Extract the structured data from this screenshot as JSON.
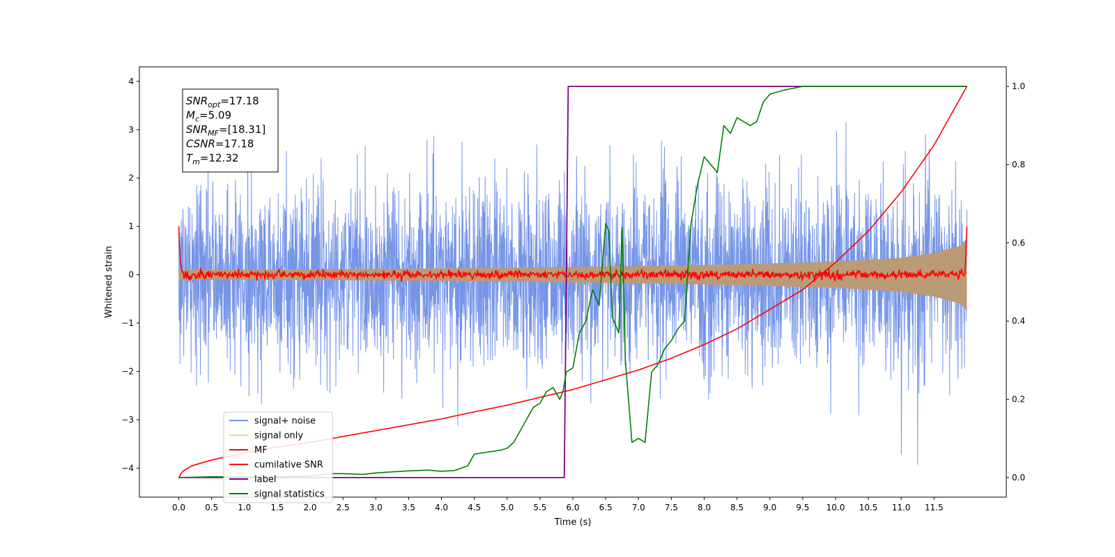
{
  "chart_data": {
    "type": "line",
    "title": "",
    "xlabel": "Time (s)",
    "ylabel": "Whitened strain",
    "ylabel_right": "",
    "xlim": [
      -0.6,
      12.6
    ],
    "ylim": [
      -4.6,
      4.3
    ],
    "ylim_right": [
      -0.05,
      1.05
    ],
    "x_ticks": [
      "0.0",
      "0.5",
      "1.0",
      "1.5",
      "2.0",
      "2.5",
      "3.0",
      "3.5",
      "4.0",
      "4.5",
      "5.0",
      "5.5",
      "6.0",
      "6.5",
      "7.0",
      "7.5",
      "8.0",
      "8.5",
      "9.0",
      "9.5",
      "10.0",
      "10.5",
      "11.0",
      "11.5"
    ],
    "y_ticks": [
      "4",
      "3",
      "2",
      "1",
      "0",
      "−1",
      "−2",
      "−3",
      "−4"
    ],
    "y_ticks_right": [
      "1.0",
      "0.8",
      "0.6",
      "0.4",
      "0.2",
      "0.0"
    ],
    "grid": false,
    "legend_position": "lower-left",
    "annotation": [
      {
        "base": "SNR",
        "sub": "opt",
        "rest": "=17.18"
      },
      {
        "base": "M",
        "sub": "c",
        "rest": "=5.09"
      },
      {
        "base": "SNR",
        "sub": "MF",
        "rest": "=[18.31]"
      },
      {
        "base": "CSNR",
        "sub": "",
        "rest": "=17.18"
      },
      {
        "base": "T",
        "sub": "m",
        "rest": "=12.32"
      }
    ],
    "series": [
      {
        "name": "signal+ noise",
        "color": "#6f8fe6",
        "axis": "left",
        "description": "white noise, amplitude about ±2.5 with spikes to ±4, over 0–12 s"
      },
      {
        "name": "signal only",
        "color": "#f5c26b",
        "axis": "left",
        "envelope": {
          "x": [
            0,
            2,
            4,
            6,
            8,
            10,
            11,
            11.5,
            11.9,
            12.0
          ],
          "amp": [
            0.1,
            0.11,
            0.13,
            0.16,
            0.2,
            0.27,
            0.35,
            0.45,
            0.6,
            0.75
          ]
        }
      },
      {
        "name": "MF",
        "color": "#ff0000",
        "axis": "left",
        "description": "noise around 0, amplitude about ±0.1, spikes to 1.0 at both ends"
      },
      {
        "name": "cumilative SNR",
        "color": "#ff0000",
        "axis": "right",
        "x": [
          0.0,
          0.05,
          0.2,
          0.5,
          1.0,
          1.5,
          2.0,
          2.5,
          3.0,
          3.5,
          4.0,
          4.5,
          5.0,
          5.5,
          6.0,
          6.5,
          7.0,
          7.5,
          8.0,
          8.5,
          9.0,
          9.5,
          10.0,
          10.5,
          11.0,
          11.5,
          12.0
        ],
        "values": [
          0.0,
          0.015,
          0.03,
          0.045,
          0.063,
          0.078,
          0.09,
          0.105,
          0.12,
          0.135,
          0.15,
          0.168,
          0.185,
          0.205,
          0.225,
          0.25,
          0.275,
          0.305,
          0.34,
          0.38,
          0.43,
          0.48,
          0.55,
          0.63,
          0.73,
          0.85,
          1.0
        ]
      },
      {
        "name": "label",
        "color": "#800080",
        "axis": "right",
        "x": [
          0.0,
          5.87,
          5.93,
          12.0
        ],
        "values": [
          0.0,
          0.0,
          1.0,
          1.0
        ]
      },
      {
        "name": "signal statistics",
        "color": "#008000",
        "axis": "right",
        "x": [
          0.0,
          0.5,
          1.0,
          1.5,
          2.0,
          2.3,
          2.5,
          2.8,
          3.0,
          3.3,
          3.5,
          3.8,
          4.0,
          4.2,
          4.4,
          4.5,
          4.7,
          4.9,
          5.0,
          5.1,
          5.2,
          5.3,
          5.4,
          5.5,
          5.6,
          5.7,
          5.8,
          5.85,
          5.9,
          6.0,
          6.1,
          6.2,
          6.3,
          6.4,
          6.5,
          6.55,
          6.6,
          6.7,
          6.75,
          6.8,
          6.9,
          7.0,
          7.1,
          7.2,
          7.3,
          7.4,
          7.5,
          7.6,
          7.7,
          7.8,
          7.9,
          8.0,
          8.1,
          8.2,
          8.3,
          8.4,
          8.5,
          8.6,
          8.7,
          8.8,
          8.9,
          9.0,
          9.2,
          9.5,
          10.0,
          11.0,
          12.0
        ],
        "values": [
          0.0,
          0.002,
          0.002,
          0.002,
          0.004,
          0.01,
          0.01,
          0.008,
          0.012,
          0.015,
          0.017,
          0.019,
          0.016,
          0.018,
          0.03,
          0.06,
          0.065,
          0.07,
          0.075,
          0.09,
          0.12,
          0.15,
          0.18,
          0.19,
          0.22,
          0.23,
          0.2,
          0.22,
          0.27,
          0.28,
          0.37,
          0.4,
          0.48,
          0.44,
          0.65,
          0.63,
          0.41,
          0.37,
          0.64,
          0.3,
          0.09,
          0.1,
          0.09,
          0.27,
          0.29,
          0.33,
          0.35,
          0.38,
          0.4,
          0.65,
          0.75,
          0.82,
          0.8,
          0.78,
          0.9,
          0.88,
          0.92,
          0.91,
          0.9,
          0.91,
          0.96,
          0.98,
          0.99,
          1.0,
          1.0,
          1.0,
          1.0
        ]
      }
    ]
  }
}
